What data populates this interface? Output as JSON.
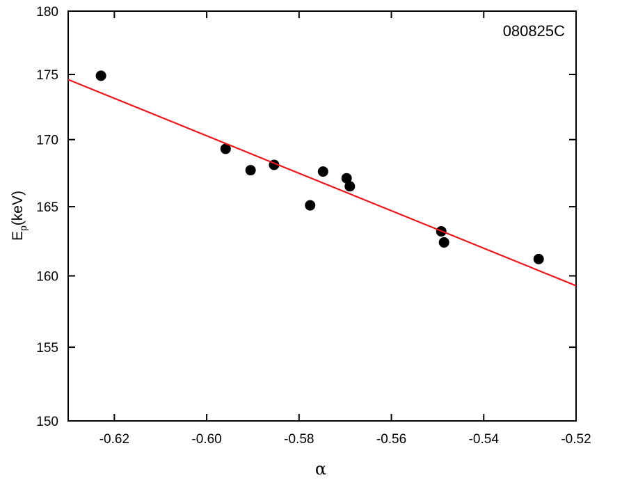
{
  "chart_data": {
    "type": "scatter",
    "annotation": "080825C",
    "x_label": "α",
    "y_label": {
      "main": "E",
      "sub": "p",
      "unit": "(keV)"
    },
    "xlim": [
      -0.63,
      -0.52
    ],
    "ylim": [
      150,
      180
    ],
    "ylog": true,
    "xticks": [
      -0.62,
      {
        "value": -0.6,
        "label": "-0.60"
      },
      -0.58,
      -0.56,
      -0.54,
      -0.52
    ],
    "yticks": [
      150,
      155,
      160,
      165,
      170,
      175,
      180
    ],
    "series": [
      {
        "type": "scatter",
        "color": "#000000",
        "x": [
          -0.6229,
          -0.5959,
          -0.5905,
          -0.5854,
          -0.5776,
          -0.5748,
          -0.5697,
          -0.569,
          -0.5492,
          -0.5486,
          -0.5281
        ],
        "values": [
          174.9,
          169.3,
          167.7,
          168.1,
          165.1,
          167.6,
          167.1,
          166.5,
          163.2,
          162.4,
          161.2
        ]
      },
      {
        "type": "line",
        "color": "#e8171b",
        "x": [
          -0.63,
          -0.52
        ],
        "values": [
          174.6,
          159.3
        ]
      }
    ]
  }
}
